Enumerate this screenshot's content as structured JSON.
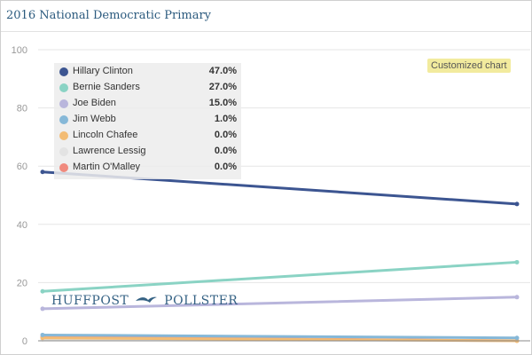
{
  "header": {
    "title": "2016 National Democratic Primary"
  },
  "badge": {
    "label": "Customized chart"
  },
  "watermark": {
    "left": "HUFFPOST",
    "right": "POLLSTER"
  },
  "colors": {
    "title": "#2b5a7e",
    "grid": "#e6e6e6",
    "badge_bg": "#f2eb9e"
  },
  "chart_data": {
    "type": "line",
    "title": "2016 National Democratic Primary",
    "xlabel": "",
    "ylabel": "",
    "ylim": [
      0,
      100
    ],
    "yticks": [
      0,
      20,
      40,
      60,
      80,
      100
    ],
    "grid": true,
    "legend_placement": "top-left",
    "series": [
      {
        "name": "Hillary Clinton",
        "label": "47.0%",
        "color": "#3c5591",
        "values": [
          58,
          47
        ]
      },
      {
        "name": "Bernie Sanders",
        "label": "27.0%",
        "color": "#8ad3c4",
        "values": [
          17,
          27
        ]
      },
      {
        "name": "Joe Biden",
        "label": "15.0%",
        "color": "#b9b6dc",
        "values": [
          11,
          15
        ]
      },
      {
        "name": "Jim Webb",
        "label": "1.0%",
        "color": "#86b8d8",
        "values": [
          2,
          1
        ]
      },
      {
        "name": "Lincoln Chafee",
        "label": "0.0%",
        "color": "#f3bc74",
        "values": [
          1,
          0
        ]
      },
      {
        "name": "Lawrence Lessig",
        "label": "0.0%",
        "color": "#e3e3e3",
        "values": [
          0.5,
          0
        ]
      },
      {
        "name": "Martin O'Malley",
        "label": "0.0%",
        "color": "#f08a7e",
        "values": [
          1.3,
          0
        ]
      }
    ]
  }
}
